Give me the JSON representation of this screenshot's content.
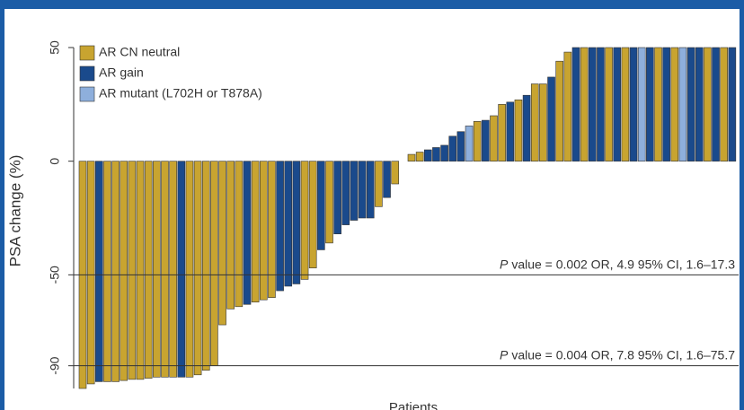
{
  "chart_data": {
    "type": "waterfall",
    "y_label": "PSA change (%)",
    "x_label": "Patients",
    "ylim": [
      -100,
      50
    ],
    "yticks": [
      50,
      0,
      -50,
      -90
    ],
    "series": [
      {
        "name": "AR CN neutral",
        "color": "#c8a430",
        "values": [
          -100,
          -98,
          null,
          -97,
          -97,
          -96.5,
          -96,
          -96,
          -95.5,
          -95,
          -95,
          -95,
          null,
          -95,
          -94,
          -92,
          -90,
          -72,
          -65,
          -64,
          null,
          -62,
          -61,
          -60,
          null,
          null,
          null,
          -52,
          -47,
          null,
          -36,
          null,
          null,
          null,
          null,
          null,
          -20,
          null,
          -10,
          null,
          3,
          4,
          null,
          null,
          null,
          null,
          null,
          null,
          17.5,
          null,
          20,
          25,
          null,
          27,
          null,
          34,
          34,
          null,
          44,
          48,
          null,
          50,
          null,
          null,
          50,
          null,
          50,
          null,
          null,
          null,
          50,
          null,
          50,
          null,
          null,
          null,
          50,
          null,
          50,
          null
        ]
      },
      {
        "name": "AR gain",
        "color": "#1a4a8c",
        "values": [
          null,
          null,
          -97,
          null,
          null,
          null,
          null,
          null,
          null,
          null,
          null,
          null,
          -95,
          null,
          null,
          null,
          null,
          null,
          null,
          null,
          -63,
          null,
          null,
          null,
          -57,
          -55,
          -54,
          null,
          null,
          -39,
          null,
          -32,
          -28,
          -26,
          -25,
          -25,
          null,
          -16,
          null,
          null,
          null,
          null,
          5,
          6,
          7,
          11,
          13,
          null,
          null,
          18,
          null,
          null,
          26,
          null,
          29,
          null,
          null,
          37,
          null,
          null,
          50,
          null,
          50,
          50,
          null,
          50,
          null,
          50,
          null,
          50,
          null,
          50,
          null,
          null,
          50,
          50,
          null,
          50,
          null,
          50
        ]
      },
      {
        "name": "AR mutant (L702H or T878A)",
        "color": "#8eafdc",
        "values": [
          null,
          null,
          null,
          null,
          null,
          null,
          null,
          null,
          null,
          null,
          null,
          null,
          null,
          null,
          null,
          null,
          null,
          null,
          null,
          null,
          null,
          null,
          null,
          null,
          null,
          null,
          null,
          null,
          null,
          null,
          null,
          null,
          null,
          null,
          null,
          null,
          null,
          null,
          null,
          null,
          null,
          null,
          null,
          null,
          null,
          null,
          null,
          15.5,
          null,
          null,
          null,
          null,
          null,
          null,
          null,
          null,
          null,
          null,
          null,
          null,
          null,
          null,
          null,
          null,
          null,
          null,
          null,
          null,
          50,
          null,
          null,
          null,
          null,
          50,
          null,
          null,
          null,
          null,
          null,
          null
        ]
      }
    ],
    "reference_lines": [
      {
        "y": -50,
        "italic": "P",
        "text": "value = 0.002  OR, 4.9  95% CI, 1.6–17.3"
      },
      {
        "y": -90,
        "italic": "P",
        "text": "value = 0.004  OR, 7.8  95% CI, 1.6–75.7"
      }
    ]
  }
}
